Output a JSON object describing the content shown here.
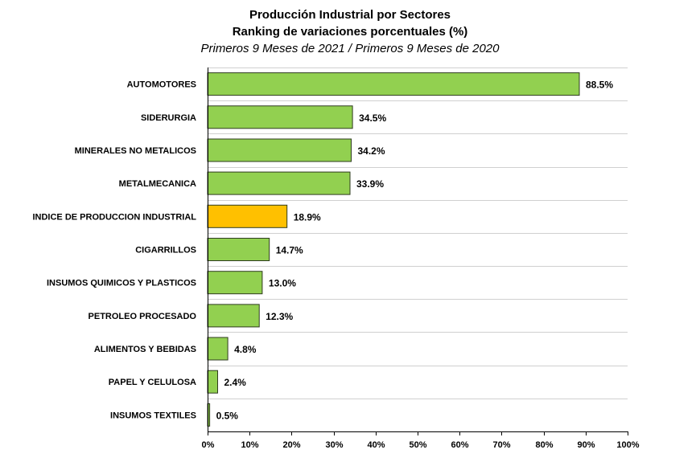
{
  "chart_data": {
    "type": "bar",
    "orientation": "horizontal",
    "title": "Producción Industrial por Sectores",
    "subtitle": "Ranking de variaciones porcentuales (%)",
    "subtitle2": "Primeros 9 Meses de 2021 / Primeros 9 Meses de 2020",
    "categories": [
      "AUTOMOTORES",
      "SIDERURGIA",
      "MINERALES NO METALICOS",
      "METALMECANICA",
      "INDICE DE PRODUCCION INDUSTRIAL",
      "CIGARRILLOS",
      "INSUMOS QUIMICOS Y PLASTICOS",
      "PETROLEO PROCESADO",
      "ALIMENTOS Y BEBIDAS",
      "PAPEL Y CELULOSA",
      "INSUMOS TEXTILES"
    ],
    "values": [
      88.5,
      34.5,
      34.2,
      33.9,
      18.9,
      14.7,
      13.0,
      12.3,
      4.8,
      2.4,
      0.5
    ],
    "value_labels": [
      "88.5%",
      "34.5%",
      "34.2%",
      "33.9%",
      "18.9%",
      "14.7%",
      "13.0%",
      "12.3%",
      "4.8%",
      "2.4%",
      "0.5%"
    ],
    "highlight_category": "INDICE DE PRODUCCION INDUSTRIAL",
    "xlim": [
      0,
      100
    ],
    "xticks": [
      "0%",
      "10%",
      "20%",
      "30%",
      "40%",
      "50%",
      "60%",
      "70%",
      "80%",
      "90%",
      "100%"
    ],
    "xlabel": "",
    "ylabel": "",
    "grid": true,
    "legend": "none",
    "colors": {
      "bar": "#92d050",
      "highlight": "#ffc000",
      "bar_stroke": "#2e3b1f",
      "grid": "#d0d0d0",
      "axis": "#000000"
    }
  }
}
